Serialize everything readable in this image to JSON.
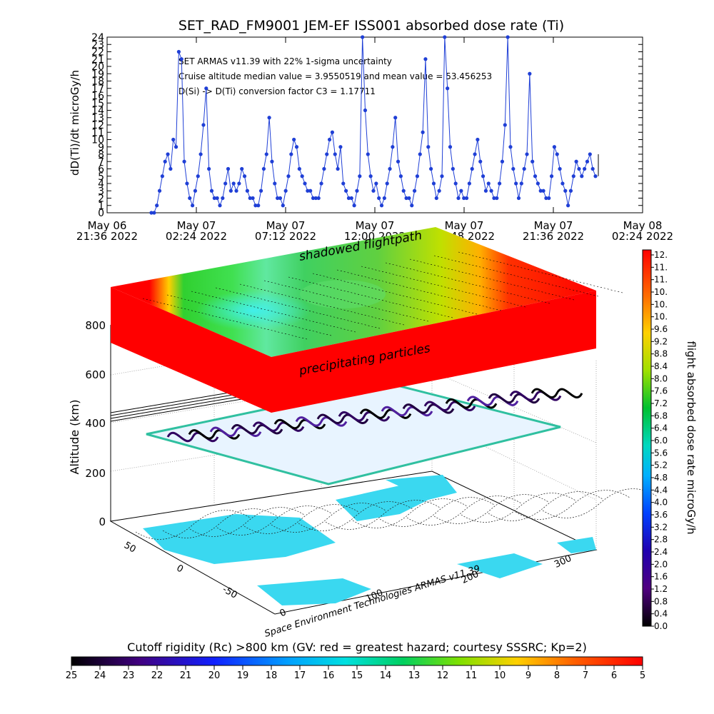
{
  "top_chart": {
    "title": "SET_RAD_FM9001  JEM-EF ISS001 absorbed dose rate (Ti)",
    "ylabel": "dD(Ti)/dt microGy/h",
    "y_ticks": [
      "0",
      "1",
      "2",
      "3",
      "4",
      "5",
      "6",
      "7",
      "8",
      "9",
      "10",
      "11",
      "12",
      "13",
      "14",
      "15",
      "16",
      "17",
      "18",
      "19",
      "20",
      "21",
      "22",
      "23",
      "24"
    ],
    "x_ticks": [
      {
        "line1": "May 06",
        "line2": "21:36 2022"
      },
      {
        "line1": "May 07",
        "line2": "02:24 2022"
      },
      {
        "line1": "May 07",
        "line2": "07:12 2022"
      },
      {
        "line1": "May 07",
        "line2": "12:00 2022"
      },
      {
        "line1": "May 07",
        "line2": "16:48 2022"
      },
      {
        "line1": "May 07",
        "line2": "21:36 2022"
      },
      {
        "line1": "May 08",
        "line2": "02:24 2022"
      }
    ],
    "annotations": [
      "SET ARMAS v11.39 with 22% 1-sigma uncertainty",
      "Cruise altitude median value = 3.9550519 and mean value = 53.456253",
      "D(Si) -> D(Ti) conversion factor C3 = 1.17711"
    ]
  },
  "chart_data": [
    {
      "type": "line",
      "title": "SET_RAD_FM9001  JEM-EF ISS001 absorbed dose rate (Ti)",
      "ylabel": "dD(Ti)/dt microGy/h",
      "xlabel": "",
      "ylim": [
        0,
        24
      ],
      "xlim_hours_since_start": [
        0,
        28.8
      ],
      "x_start_label": "May 06 21:36 2022",
      "series": [
        {
          "values": [
            0,
            0,
            1,
            3,
            5,
            7,
            8,
            6,
            10,
            9,
            22,
            21,
            7,
            4,
            2,
            1,
            3,
            5,
            8,
            12,
            17,
            6,
            3,
            2,
            2,
            1,
            2,
            4,
            6,
            3,
            4,
            3,
            4,
            6,
            5,
            3,
            2,
            2,
            1,
            1,
            3,
            6,
            8,
            13,
            7,
            4,
            2,
            2,
            1,
            3,
            5,
            8,
            10,
            9,
            6,
            5,
            4,
            3,
            3,
            2,
            2,
            2,
            4,
            6,
            8,
            10,
            11,
            8,
            6,
            9,
            4,
            3,
            2,
            2,
            1,
            3,
            5,
            24,
            14,
            8,
            5,
            3,
            4,
            2,
            1,
            2,
            4,
            6,
            9,
            13,
            7,
            5,
            3,
            2,
            2,
            1,
            3,
            5,
            8,
            11,
            21,
            9,
            6,
            4,
            2,
            3,
            5,
            24,
            17,
            9,
            6,
            4,
            2,
            3,
            2,
            2,
            4,
            6,
            8,
            10,
            7,
            5,
            3,
            4,
            3,
            2,
            2,
            4,
            7,
            12,
            24,
            9,
            6,
            4,
            2,
            4,
            6,
            8,
            19,
            7,
            5,
            4,
            3,
            3,
            2,
            2,
            5,
            9,
            8,
            6,
            4,
            3,
            1,
            3,
            5,
            7,
            6,
            5,
            6,
            7,
            8,
            6,
            5
          ]
        }
      ],
      "color": "#1f3fd6"
    },
    {
      "type": "heatmap",
      "title": "",
      "xlabel": "",
      "ylabel": "Altitude (km)",
      "z_ticks": [
        "0",
        "200",
        "400",
        "600",
        "800"
      ],
      "lon_ticks": [
        "0",
        "100",
        "200",
        "300"
      ],
      "lat_ticks": [
        "-50",
        "0",
        "50"
      ],
      "layers": [
        {
          "label": "shadowed flightpath",
          "altitude_km": 900
        },
        {
          "label": "precipitating particles",
          "altitude_km": 800
        },
        {
          "label": "",
          "altitude_km": 400
        },
        {
          "label": "",
          "altitude_km": 0
        }
      ]
    }
  ],
  "dose_colorbar": {
    "label": "flight absorbed dose rate microGy/h",
    "ticks": [
      "12.",
      "11.",
      "11.",
      "10.",
      "10.",
      "10.",
      "9.6",
      "9.2",
      "8.8",
      "8.4",
      "8.0",
      "7.6",
      "7.2",
      "6.8",
      "6.4",
      "6.0",
      "5.6",
      "5.2",
      "4.8",
      "4.4",
      "4.0",
      "3.6",
      "3.2",
      "2.8",
      "2.4",
      "2.0",
      "1.6",
      "1.2",
      "0.8",
      "0.4",
      "0.0"
    ]
  },
  "rigidity_colorbar": {
    "label": "Cutoff rigidity (Rc) >800 km (GV: red = greatest hazard; courtesy SSSRC; Kp=2)",
    "ticks": [
      "25",
      "24",
      "23",
      "22",
      "21",
      "20",
      "19",
      "18",
      "17",
      "16",
      "15",
      "14",
      "13",
      "12",
      "11",
      "10",
      "9",
      "8",
      "7",
      "6",
      "5"
    ]
  },
  "credit": "Space Environment Technologies ARMAS v11.39",
  "layer_labels": {
    "top": "shadowed flightpath",
    "middle": "precipitating particles"
  },
  "colors": {
    "series": "#1f3fd6",
    "hazard": "#ff0000",
    "ocean": "#3ad8f0"
  }
}
